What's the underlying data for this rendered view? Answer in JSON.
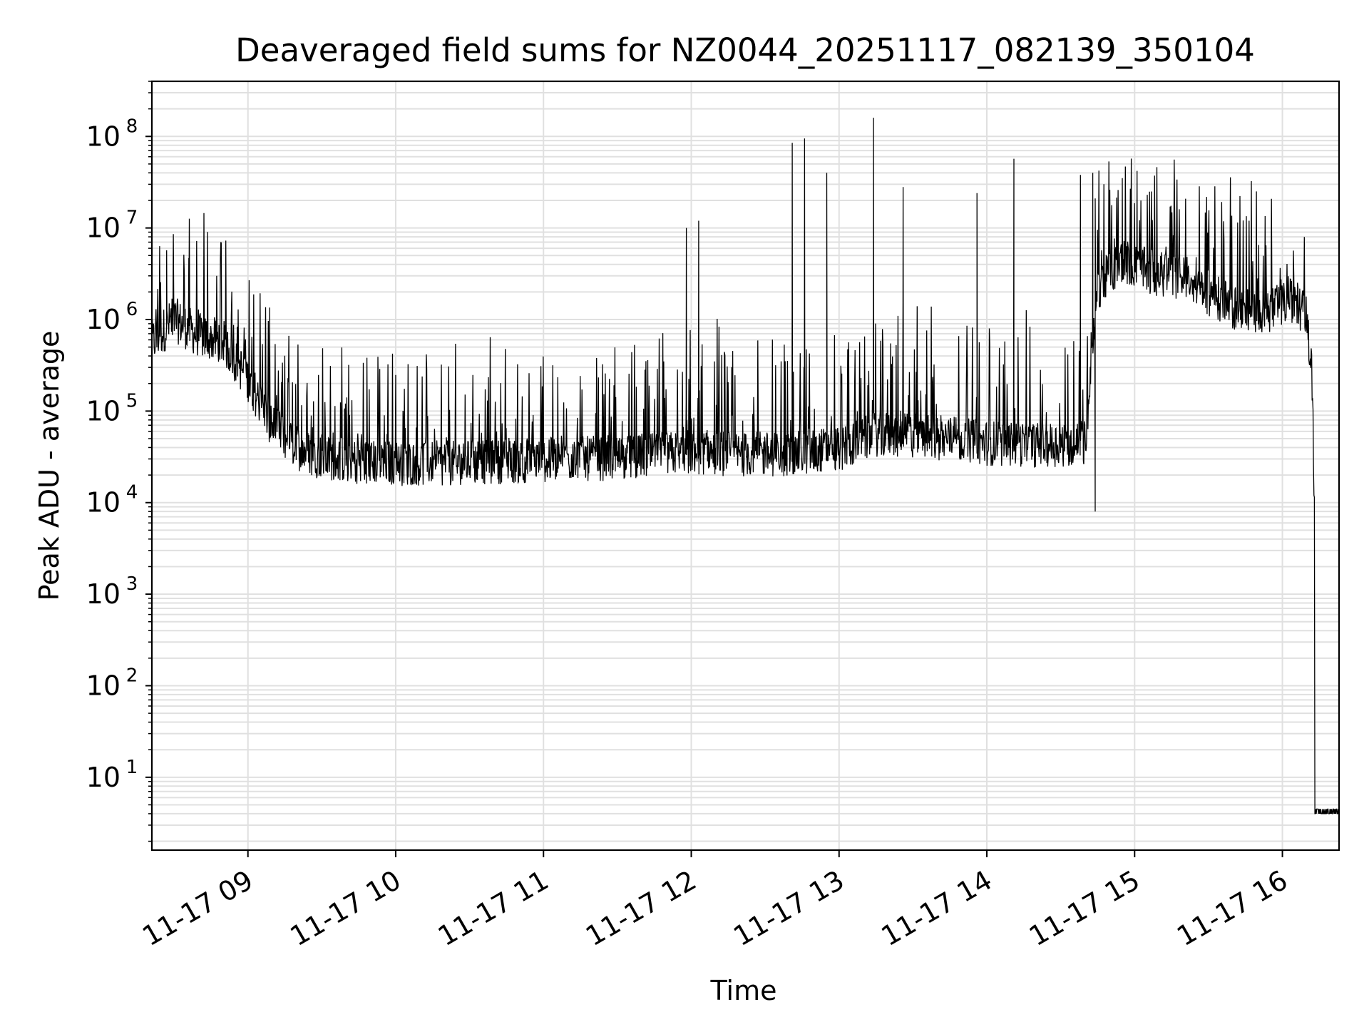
{
  "chart_data": {
    "type": "line",
    "title": "Deaveraged field sums for NZ0044_20251117_082139_350104",
    "xlabel": "Time",
    "ylabel": "Peak ADU - average",
    "y_scale": "log",
    "ylim": [
      1.6,
      400000000
    ],
    "xlim": [
      "2025-11-17 08:21",
      "2025-11-17 16:23"
    ],
    "grid": true,
    "line_color": "#000000",
    "grid_color": "#e0e0e0",
    "x_ticks": [
      "11-17 09",
      "11-17 10",
      "11-17 11",
      "11-17 12",
      "11-17 13",
      "11-17 14",
      "11-17 15",
      "11-17 16"
    ],
    "y_ticks": [
      {
        "base": "10",
        "exp": "1",
        "value": 10
      },
      {
        "base": "10",
        "exp": "2",
        "value": 100
      },
      {
        "base": "10",
        "exp": "3",
        "value": 1000
      },
      {
        "base": "10",
        "exp": "4",
        "value": 10000
      },
      {
        "base": "10",
        "exp": "5",
        "value": 100000
      },
      {
        "base": "10",
        "exp": "6",
        "value": 1000000
      },
      {
        "base": "10",
        "exp": "7",
        "value": 10000000
      },
      {
        "base": "10",
        "exp": "8",
        "value": 100000000
      }
    ],
    "series": [
      {
        "x": [
          "2025-11-17 08:21",
          "2025-11-17 08:30",
          "2025-11-17 08:40",
          "2025-11-17 08:50",
          "2025-11-17 09:00",
          "2025-11-17 09:10",
          "2025-11-17 09:20",
          "2025-11-17 09:30",
          "2025-11-17 09:45",
          "2025-11-17 10:00",
          "2025-11-17 10:20",
          "2025-11-17 10:40",
          "2025-11-17 11:00",
          "2025-11-17 11:20",
          "2025-11-17 11:40",
          "2025-11-17 12:00",
          "2025-11-17 12:20",
          "2025-11-17 12:40",
          "2025-11-17 13:00",
          "2025-11-17 13:15",
          "2025-11-17 13:30",
          "2025-11-17 13:45",
          "2025-11-17 14:00",
          "2025-11-17 14:20",
          "2025-11-17 14:40",
          "2025-11-17 14:45",
          "2025-11-17 14:55",
          "2025-11-17 15:05",
          "2025-11-17 15:20",
          "2025-11-17 15:40",
          "2025-11-17 15:55",
          "2025-11-17 16:05",
          "2025-11-17 16:10",
          "2025-11-17 16:12",
          "2025-11-17 16:13",
          "2025-11-17 16:23"
        ],
        "baseline": [
          500000,
          900000,
          600000,
          500000,
          200000,
          60000,
          35000,
          28000,
          25000,
          24000,
          24000,
          25000,
          26000,
          27000,
          28000,
          32000,
          30000,
          30000,
          35000,
          50000,
          48000,
          45000,
          40000,
          38000,
          40000,
          2000000,
          4000000,
          3000000,
          2500000,
          1200000,
          1100000,
          1500000,
          900000,
          200000,
          10000,
          4
        ],
        "spikes": [
          {
            "x": "2025-11-17 08:27",
            "y": 5700000
          },
          {
            "x": "2025-11-17 08:36",
            "y": 4700000
          },
          {
            "x": "2025-11-17 11:58",
            "y": 10000000
          },
          {
            "x": "2025-11-17 12:03",
            "y": 12000000
          },
          {
            "x": "2025-11-17 12:41",
            "y": 85000000
          },
          {
            "x": "2025-11-17 12:46",
            "y": 95000000
          },
          {
            "x": "2025-11-17 12:55",
            "y": 40000000
          },
          {
            "x": "2025-11-17 13:14",
            "y": 160000000
          },
          {
            "x": "2025-11-17 13:26",
            "y": 28000000
          },
          {
            "x": "2025-11-17 13:56",
            "y": 24000000
          },
          {
            "x": "2025-11-17 14:11",
            "y": 57000000
          },
          {
            "x": "2025-11-17 14:38",
            "y": 38000000
          },
          {
            "x": "2025-11-17 14:43",
            "y": 40000000
          },
          {
            "x": "2025-11-17 14:55",
            "y": 35000000
          },
          {
            "x": "2025-11-17 15:01",
            "y": 42000000
          }
        ],
        "dips": [
          {
            "x": "2025-11-17 14:44",
            "y": 8000
          }
        ]
      }
    ]
  }
}
